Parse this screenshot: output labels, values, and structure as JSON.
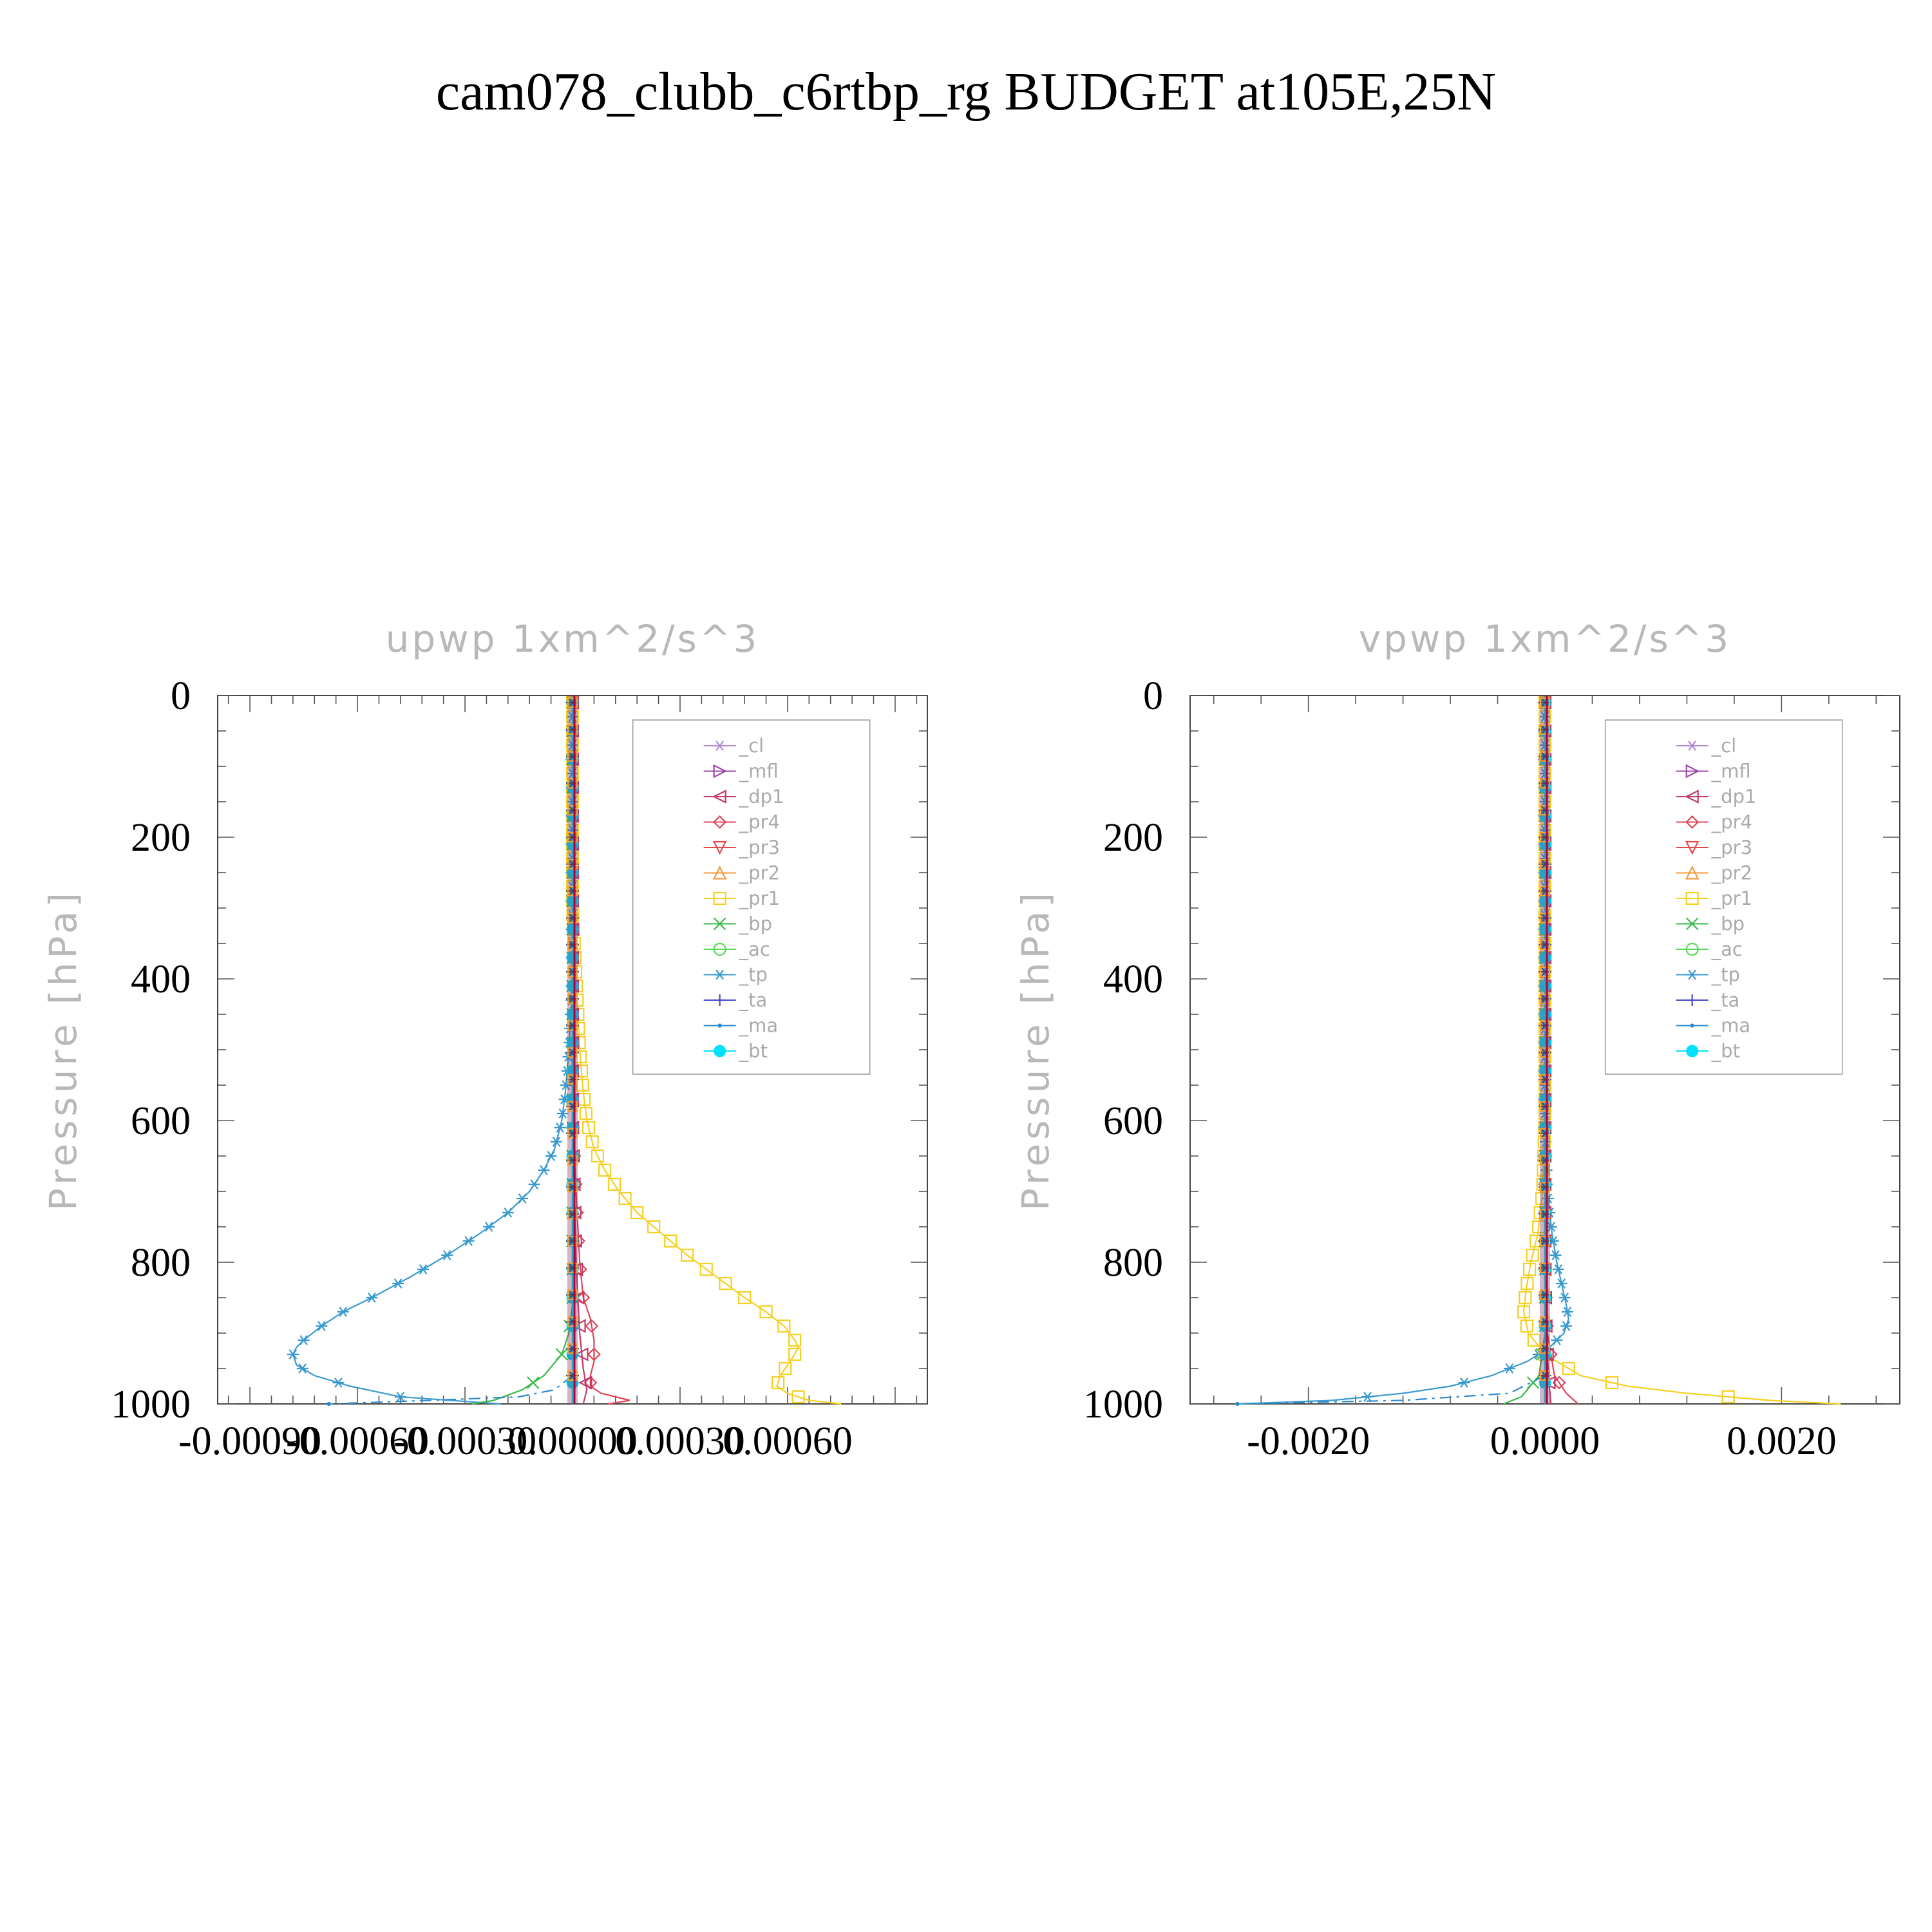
{
  "title": "cam078_clubb_c6rtbp_rg  BUDGET at105E,25N",
  "colors": {
    "_cl": "#b48ad8",
    "_mfl": "#9a4aa8",
    "_dp1": "#c03a6a",
    "_pr4": "#e0445a",
    "_pr3": "#e8484a",
    "_pr2": "#f59a3c",
    "_pr1": "#f5d020",
    "_bp": "#3cb84a",
    "_ac": "#5ad85a",
    "_tp": "#3a9ad0",
    "_ta": "#4a4ac8",
    "_ma": "#2a8ad0",
    "_bt": "#00e0ff"
  },
  "chart_data": [
    {
      "type": "line",
      "title": "upwp    1xm^2/s^3",
      "ylabel": "Pressure  [hPa]",
      "xlabel": "",
      "ylim": [
        1000,
        0
      ],
      "xlim": [
        -0.00099,
        0.00099
      ],
      "x_tick_values": [
        -0.0009,
        -0.0006,
        -0.0003,
        0.0,
        0.0003,
        0.0006
      ],
      "x_tick_labels": [
        "-0.00090",
        "-0.00060",
        "-0.00030",
        "0.00000",
        "0.00030",
        "0.00060"
      ],
      "y_tick_values": [
        0,
        200,
        400,
        600,
        800,
        1000
      ],
      "y_tick_labels": [
        "0",
        "200",
        "400",
        "600",
        "800",
        "1000"
      ],
      "legend_position": "top-right",
      "legend": [
        "_cl",
        "_mfl",
        "_dp1",
        "_pr4",
        "_pr3",
        "_pr2",
        "_pr1",
        "_bp",
        "_ac",
        "_tp",
        "_ta",
        "_ma",
        "_bt"
      ],
      "series": [
        {
          "name": "_tp",
          "p": [
            10,
            50,
            100,
            150,
            200,
            300,
            400,
            500,
            560,
            600,
            640,
            670,
            700,
            730,
            760,
            790,
            820,
            850,
            870,
            890,
            910,
            920,
            930,
            945,
            960,
            975,
            990,
            1000
          ],
          "x": [
            0,
            0,
            0,
            0,
            0,
            0,
            0,
            -1e-05,
            -2e-05,
            -3e-05,
            -5e-05,
            -8e-05,
            -0.00012,
            -0.00018,
            -0.00026,
            -0.00035,
            -0.00045,
            -0.00056,
            -0.00064,
            -0.0007,
            -0.00075,
            -0.00077,
            -0.00078,
            -0.00077,
            -0.00072,
            -0.00062,
            -0.00048,
            -0.0002
          ]
        },
        {
          "name": "_pr1",
          "p": [
            10,
            50,
            100,
            150,
            200,
            300,
            400,
            500,
            560,
            600,
            640,
            670,
            700,
            730,
            760,
            790,
            820,
            850,
            870,
            890,
            910,
            920,
            930,
            945,
            960,
            975,
            985,
            995,
            1000
          ],
          "x": [
            0,
            0,
            0,
            0,
            0,
            0,
            1e-05,
            2e-05,
            3e-05,
            4e-05,
            6e-05,
            9e-05,
            0.00013,
            0.00018,
            0.00025,
            0.00032,
            0.0004,
            0.00048,
            0.00054,
            0.00059,
            0.00062,
            0.00063,
            0.00062,
            0.0006,
            0.00058,
            0.00057,
            0.0006,
            0.00066,
            0.00075
          ]
        },
        {
          "name": "_bp",
          "p": [
            10,
            100,
            200,
            400,
            600,
            800,
            860,
            900,
            930,
            960,
            980,
            995,
            1000
          ],
          "x": [
            0,
            0,
            0,
            0,
            0,
            0,
            0,
            -1e-05,
            -3e-05,
            -8e-05,
            -0.00014,
            -0.00022,
            -0.00028
          ]
        },
        {
          "name": "_pr4",
          "p": [
            10,
            100,
            200,
            400,
            600,
            700,
            800,
            850,
            880,
            910,
            940,
            960,
            975,
            985,
            995,
            1000
          ],
          "x": [
            0,
            0,
            0,
            0,
            0,
            1e-05,
            2e-05,
            3e-05,
            5e-05,
            6e-05,
            6e-05,
            5e-05,
            5e-05,
            8e-05,
            0.00016,
            0.0001
          ]
        },
        {
          "name": "_dp1",
          "p": [
            10,
            100,
            200,
            400,
            600,
            800,
            900,
            950,
            980,
            1000
          ],
          "x": [
            0,
            0,
            0,
            0,
            0,
            1e-05,
            2e-05,
            3e-05,
            4e-05,
            3e-05
          ]
        },
        {
          "name": "_ma",
          "p": [
            960,
            980,
            990,
            995,
            1000
          ],
          "x": [
            0,
            -5e-05,
            -0.00015,
            -0.0004,
            -0.00068
          ]
        },
        {
          "name": "_ta",
          "p": [
            10,
            200,
            400,
            600,
            800,
            1000
          ],
          "x": [
            0,
            0,
            0,
            0,
            0,
            0
          ]
        },
        {
          "name": "_bt",
          "p": [
            10,
            200,
            400,
            600,
            800,
            1000
          ],
          "x": [
            0,
            0,
            0,
            0,
            0,
            0
          ]
        }
      ]
    },
    {
      "type": "line",
      "title": "vpwp    1xm^2/s^3",
      "ylabel": "Pressure  [hPa]",
      "xlabel": "",
      "ylim": [
        1000,
        0
      ],
      "xlim": [
        -0.003,
        0.003
      ],
      "x_tick_values": [
        -0.002,
        0.0,
        0.002
      ],
      "x_tick_labels": [
        "-0.0020",
        "0.0000",
        "0.0020"
      ],
      "y_tick_values": [
        0,
        200,
        400,
        600,
        800,
        1000
      ],
      "y_tick_labels": [
        "0",
        "200",
        "400",
        "600",
        "800",
        "1000"
      ],
      "legend_position": "top-right",
      "legend": [
        "_cl",
        "_mfl",
        "_dp1",
        "_pr4",
        "_pr3",
        "_pr2",
        "_pr1",
        "_bp",
        "_ac",
        "_tp",
        "_ta",
        "_ma",
        "_bt"
      ],
      "series": [
        {
          "name": "_tp",
          "p": [
            10,
            200,
            400,
            600,
            700,
            760,
            800,
            830,
            860,
            880,
            900,
            920,
            940,
            960,
            975,
            985,
            995,
            1000
          ],
          "x": [
            0,
            0,
            0,
            0,
            2e-05,
            6e-05,
            0.0001,
            0.00014,
            0.00018,
            0.0002,
            0.00016,
            4e-05,
            -0.00015,
            -0.00045,
            -0.0008,
            -0.0012,
            -0.0018,
            -0.0026
          ]
        },
        {
          "name": "_pr1",
          "p": [
            10,
            200,
            400,
            600,
            700,
            760,
            800,
            840,
            870,
            900,
            930,
            960,
            975,
            985,
            995,
            1000
          ],
          "x": [
            0,
            0,
            0,
            0,
            -2e-05,
            -6e-05,
            -0.00012,
            -0.00016,
            -0.00018,
            -0.00014,
            0,
            0.0003,
            0.0007,
            0.0012,
            0.0019,
            0.0025
          ]
        },
        {
          "name": "_bp",
          "p": [
            10,
            400,
            800,
            900,
            960,
            990,
            1000
          ],
          "x": [
            0,
            0,
            0,
            0,
            -5e-05,
            -0.0002,
            -0.00035
          ]
        },
        {
          "name": "_pr4",
          "p": [
            10,
            400,
            800,
            900,
            960,
            985,
            1000
          ],
          "x": [
            0,
            0,
            0,
            2e-05,
            8e-05,
            0.00018,
            0.00028
          ]
        },
        {
          "name": "_dp1",
          "p": [
            10,
            400,
            800,
            900,
            960,
            1000
          ],
          "x": [
            0,
            0,
            0,
            1e-05,
            3e-05,
            5e-05
          ]
        },
        {
          "name": "_ma",
          "p": [
            960,
            985,
            995,
            1000
          ],
          "x": [
            0,
            -0.0003,
            -0.0012,
            -0.0026
          ]
        },
        {
          "name": "_ta",
          "p": [
            10,
            400,
            800,
            1000
          ],
          "x": [
            0,
            0,
            0,
            0
          ]
        },
        {
          "name": "_bt",
          "p": [
            10,
            400,
            800,
            1000
          ],
          "x": [
            0,
            0,
            0,
            0
          ]
        }
      ]
    }
  ]
}
